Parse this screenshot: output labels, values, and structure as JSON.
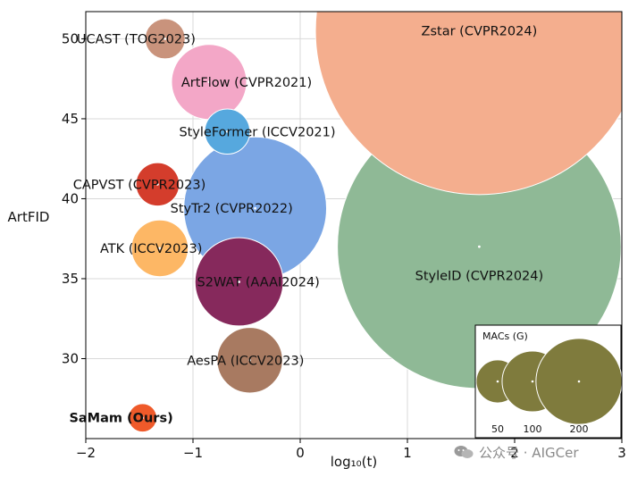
{
  "chart_data": {
    "type": "scatter",
    "subtype": "bubble",
    "xlabel": "log₁₀(t)",
    "ylabel": "ArtFID",
    "xlim": [
      -2,
      3
    ],
    "ylim": [
      25,
      51.7
    ],
    "xticks": [
      "−2",
      "−1",
      "0",
      "1",
      "2",
      "3"
    ],
    "xtick_values": [
      -2,
      -1,
      0,
      1,
      2,
      3
    ],
    "yticks": [
      "30",
      "35",
      "40",
      "45",
      "50"
    ],
    "ytick_values": [
      30,
      35,
      40,
      45,
      50
    ],
    "grid": true,
    "size_metric": "MACs (G)",
    "points": [
      {
        "name": "StyleID (CVPR2024)",
        "x": 1.67,
        "y": 37.0,
        "macs": 1500,
        "color": "#8fb996",
        "label_dx": 0.0,
        "label_dy": -1.8,
        "bold": false
      },
      {
        "name": "Zstar (CVPR2024)",
        "x": 1.67,
        "y": 50.5,
        "macs": 2000,
        "color": "#f4ae8e",
        "label_dx": 0.0,
        "label_dy": 0.0,
        "bold": false
      },
      {
        "name": "StyTr2 (CVPR2022)",
        "x": -0.42,
        "y": 39.4,
        "macs": 380,
        "color": "#7ba6e4",
        "label_dx": -0.22,
        "label_dy": 0.0,
        "bold": false
      },
      {
        "name": "ArtFlow (CVPR2021)",
        "x": -0.85,
        "y": 47.3,
        "macs": 105,
        "color": "#f3a7c7",
        "label_dx": 0.35,
        "label_dy": 0.0,
        "bold": false
      },
      {
        "name": "S2WAT (AAAI2024)",
        "x": -0.57,
        "y": 34.8,
        "macs": 145,
        "color": "#86295c",
        "label_dx": 0.18,
        "label_dy": 0.0,
        "bold": false
      },
      {
        "name": "AesPA (ICCV2023)",
        "x": -0.47,
        "y": 29.9,
        "macs": 80,
        "color": "#a87a61",
        "label_dx": -0.04,
        "label_dy": 0.0,
        "bold": false
      },
      {
        "name": "ATK (ICCV2023)",
        "x": -1.31,
        "y": 36.9,
        "macs": 60,
        "color": "#fdb765",
        "label_dx": -0.08,
        "label_dy": 0.0,
        "bold": false
      },
      {
        "name": "UCAST (TOG2023)",
        "x": -1.26,
        "y": 50.0,
        "macs": 30,
        "color": "#c9937c",
        "label_dx": -0.27,
        "label_dy": 0.0,
        "bold": false
      },
      {
        "name": "CAPVST (CVPR2023)",
        "x": -1.33,
        "y": 40.9,
        "macs": 35,
        "color": "#d43d2c",
        "label_dx": -0.17,
        "label_dy": 0.0,
        "bold": false
      },
      {
        "name": "StyleFormer (ICCV2021)",
        "x": -0.68,
        "y": 44.2,
        "macs": 38,
        "color": "#56a8de",
        "label_dx": 0.28,
        "label_dy": 0.0,
        "bold": false
      },
      {
        "name": "SaMam (Ours)",
        "x": -1.47,
        "y": 26.3,
        "macs": 15,
        "color": "#ef5a2a",
        "label_dx": -0.2,
        "label_dy": 0.0,
        "bold": true
      }
    ],
    "legend": {
      "title": "MACs (G)",
      "placement": "bottom-right",
      "color": "#7f7b3d",
      "entries": [
        {
          "label": "50",
          "macs": 50
        },
        {
          "label": "100",
          "macs": 100
        },
        {
          "label": "200",
          "macs": 200
        }
      ]
    }
  },
  "watermark": {
    "text": "公众号 · AIGCer",
    "icon": "wechat-icon"
  }
}
